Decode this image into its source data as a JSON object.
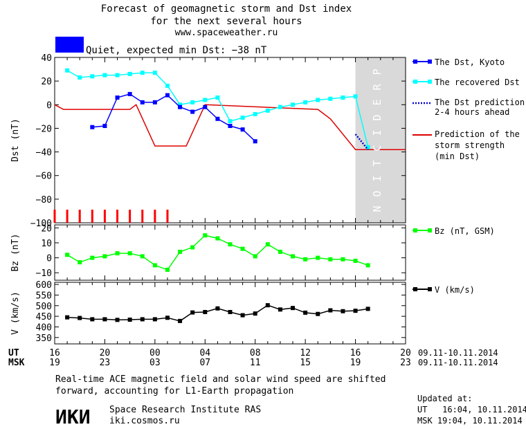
{
  "header": {
    "title_line1": "Forecast of geomagnetic storm and Dst index",
    "title_line2": "for the next several hours",
    "site": "www.spaceweather.ru",
    "status_text": "Quiet, expected min Dst: −38 nT",
    "status_color": "#0000ff"
  },
  "prediction_label": "PREDICTION",
  "legend": {
    "dst_kyoto": "The Dst, Kyoto",
    "recovered_line1": "The recovered Dst",
    "prediction_line1": "The Dst prediction",
    "prediction_line2": "2-4 hours ahead",
    "strength_line1": "Prediction of the",
    "strength_line2": "storm strength",
    "strength_line3": "(min Dst)",
    "bz": "Bz (nT, GSM)",
    "v": "V (km/s)"
  },
  "colors": {
    "dst_kyoto": "#0000ff",
    "recovered": "#00ffff",
    "prediction": "#0000cc",
    "strength": "#dd0000",
    "bz": "#00ff00",
    "v": "#000000",
    "prediction_zone": "#d9d9d9",
    "quiet_bars": "#ff0000"
  },
  "time_axis": {
    "ut_label": "UT",
    "msk_label": "MSK",
    "ut_ticks": [
      "16",
      "20",
      "00",
      "04",
      "08",
      "12",
      "16",
      "20"
    ],
    "msk_ticks": [
      "19",
      "23",
      "03",
      "07",
      "11",
      "15",
      "19",
      "23"
    ],
    "ut_range": "09.11-10.11.2014",
    "msk_range": "09.11-10.11.2014"
  },
  "footer": {
    "note_line1": "Real-time ACE magnetic field and solar wind speed are shifted",
    "note_line2": "forward, accounting for L1-Earth propagation",
    "logo_text": "ИКИ",
    "institute": "Space Research Institute RAS",
    "institute_url": "iki.cosmos.ru",
    "updated_label": "Updated at:",
    "updated_ut": "UT   16:04, 10.11.2014",
    "updated_msk": "MSK 19:04, 10.11.2014"
  },
  "chart_data": [
    {
      "type": "line",
      "ylabel": "Dst (nT)",
      "ylim": [
        -100,
        40
      ],
      "yticks": [
        40,
        20,
        0,
        -20,
        -40,
        -60,
        -80,
        -100
      ],
      "x_unit": "hours since 16 UT",
      "prediction_zone": [
        24,
        28
      ],
      "series": [
        {
          "name": "The Dst, Kyoto",
          "x": [
            3,
            4,
            5,
            6,
            7,
            8,
            9,
            10,
            11,
            12,
            13,
            14,
            15,
            16
          ],
          "y": [
            -19,
            -18,
            6,
            9,
            2,
            2,
            8,
            -2,
            -6,
            -2,
            -12,
            -18,
            -21,
            -31
          ]
        },
        {
          "name": "The recovered Dst",
          "x": [
            1,
            2,
            3,
            4,
            5,
            6,
            7,
            8,
            9,
            10,
            11,
            12,
            13,
            14,
            15,
            16,
            17,
            18,
            19,
            20,
            21,
            22,
            23,
            24,
            25
          ],
          "y": [
            29,
            23,
            24,
            25,
            25,
            26,
            27,
            27,
            16,
            0,
            2,
            4,
            6,
            -14,
            -11,
            -8,
            -5,
            -2,
            0,
            2,
            4,
            5,
            6,
            7,
            -36
          ]
        },
        {
          "name": "The Dst prediction",
          "x": [
            24,
            25
          ],
          "y": [
            -25,
            -38
          ]
        },
        {
          "name": "Prediction of the storm strength",
          "x": [
            0,
            0.7,
            6,
            6.5,
            8,
            8,
            10.5,
            12,
            12,
            21,
            22,
            24,
            24.5,
            28
          ],
          "y": [
            0,
            -4,
            -4,
            0,
            -35,
            -35,
            -35,
            0,
            0,
            -4,
            -12,
            -38,
            -38,
            -38
          ]
        }
      ],
      "quiet_markers_x": [
        0,
        1,
        2,
        3,
        4,
        5,
        6,
        7,
        8,
        9
      ]
    },
    {
      "type": "line",
      "ylabel": "Bz (nT)",
      "ylim": [
        -15,
        22
      ],
      "yticks": [
        20,
        10,
        0,
        -10
      ],
      "series": [
        {
          "name": "Bz (nT, GSM)",
          "x": [
            1,
            2,
            3,
            4,
            5,
            6,
            7,
            8,
            9,
            10,
            11,
            12,
            13,
            14,
            15,
            16,
            17,
            18,
            19,
            20,
            21,
            22,
            23,
            24,
            25
          ],
          "y": [
            2,
            -3,
            0,
            1,
            3,
            3,
            1,
            -5,
            -8,
            4,
            7,
            15,
            13,
            9,
            6,
            1,
            9,
            4,
            1,
            -1,
            0,
            -1,
            -1,
            -2,
            -5
          ]
        }
      ]
    },
    {
      "type": "line",
      "ylabel": "V (km/s)",
      "ylim": [
        320,
        610
      ],
      "yticks": [
        600,
        550,
        500,
        450,
        400,
        350
      ],
      "series": [
        {
          "name": "V (km/s)",
          "x": [
            1,
            2,
            3,
            4,
            5,
            6,
            7,
            8,
            9,
            10,
            11,
            12,
            13,
            14,
            15,
            16,
            17,
            18,
            19,
            20,
            21,
            22,
            23,
            24,
            25
          ],
          "y": [
            445,
            442,
            436,
            436,
            433,
            434,
            436,
            436,
            443,
            428,
            468,
            470,
            487,
            470,
            455,
            463,
            502,
            482,
            489,
            467,
            461,
            478,
            474,
            476,
            485
          ]
        }
      ]
    }
  ]
}
